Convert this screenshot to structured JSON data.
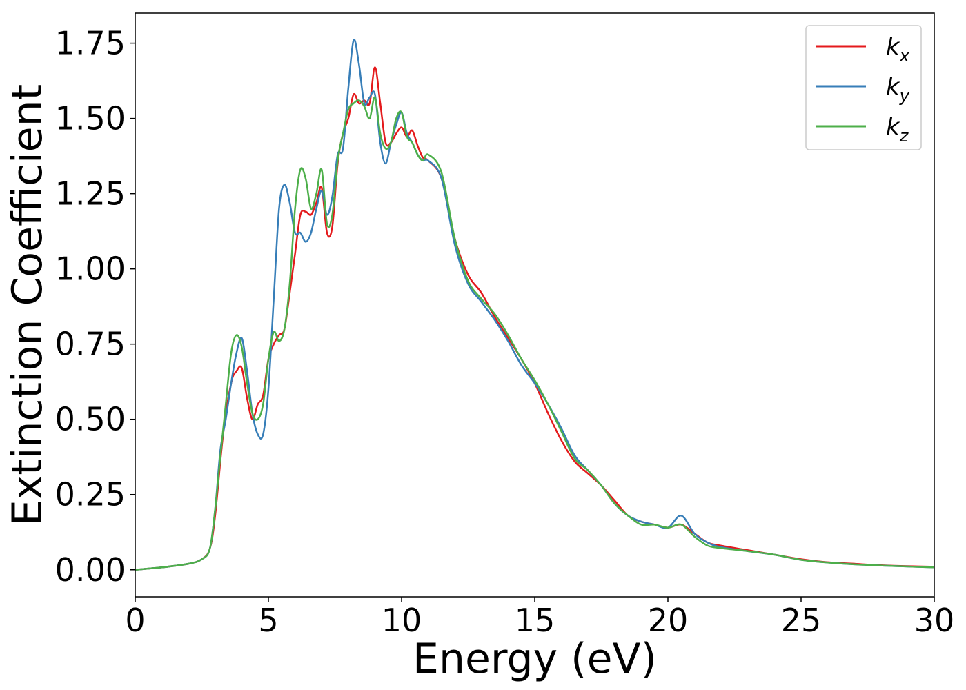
{
  "chart_data": {
    "type": "line",
    "title": "",
    "xlabel": "Energy (eV)",
    "ylabel": "Extinction Coefficient",
    "xlim": [
      0,
      30
    ],
    "ylim": [
      -0.09,
      1.85
    ],
    "xticks": [
      0,
      5,
      10,
      15,
      20,
      25,
      30
    ],
    "xtick_labels": [
      "0",
      "5",
      "10",
      "15",
      "20",
      "25",
      "30"
    ],
    "yticks": [
      0.0,
      0.25,
      0.5,
      0.75,
      1.0,
      1.25,
      1.5,
      1.75
    ],
    "ytick_labels": [
      "0.00",
      "0.25",
      "0.50",
      "0.75",
      "1.00",
      "1.25",
      "1.50",
      "1.75"
    ],
    "grid": false,
    "legend_position": "top-right",
    "series": [
      {
        "name": "k",
        "subscript": "x",
        "color": "#e41a1c",
        "x": [
          0,
          1,
          2,
          2.5,
          2.8,
          3.0,
          3.3,
          3.6,
          3.8,
          4.0,
          4.2,
          4.4,
          4.6,
          4.8,
          5.0,
          5.2,
          5.4,
          5.6,
          5.8,
          6.0,
          6.2,
          6.4,
          6.6,
          6.8,
          7.0,
          7.2,
          7.4,
          7.6,
          7.8,
          8.0,
          8.2,
          8.4,
          8.6,
          8.8,
          9.0,
          9.2,
          9.4,
          9.6,
          9.8,
          10.0,
          10.2,
          10.4,
          10.6,
          10.8,
          11.0,
          11.5,
          12.0,
          12.5,
          13.0,
          13.5,
          14.0,
          14.5,
          15.0,
          15.5,
          16.0,
          16.5,
          17.0,
          17.5,
          18.0,
          18.5,
          19.0,
          19.5,
          20.0,
          20.5,
          21.0,
          21.5,
          22,
          23,
          24,
          25,
          26,
          27,
          28,
          29,
          30
        ],
        "y": [
          0.0,
          0.008,
          0.02,
          0.035,
          0.07,
          0.18,
          0.45,
          0.62,
          0.66,
          0.67,
          0.57,
          0.5,
          0.55,
          0.58,
          0.7,
          0.75,
          0.78,
          0.8,
          0.92,
          1.05,
          1.18,
          1.19,
          1.18,
          1.22,
          1.27,
          1.12,
          1.14,
          1.35,
          1.45,
          1.5,
          1.58,
          1.55,
          1.56,
          1.55,
          1.67,
          1.55,
          1.42,
          1.42,
          1.45,
          1.47,
          1.44,
          1.46,
          1.41,
          1.37,
          1.36,
          1.3,
          1.1,
          0.98,
          0.92,
          0.84,
          0.77,
          0.7,
          0.62,
          0.52,
          0.43,
          0.36,
          0.32,
          0.28,
          0.23,
          0.18,
          0.16,
          0.15,
          0.14,
          0.15,
          0.12,
          0.09,
          0.08,
          0.065,
          0.05,
          0.035,
          0.025,
          0.02,
          0.015,
          0.012,
          0.01
        ]
      },
      {
        "name": "k",
        "subscript": "y",
        "color": "#377eb8",
        "x": [
          0,
          1,
          2,
          2.5,
          2.8,
          3.0,
          3.2,
          3.4,
          3.6,
          3.8,
          4.0,
          4.2,
          4.4,
          4.6,
          4.8,
          5.0,
          5.2,
          5.4,
          5.6,
          5.8,
          6.0,
          6.2,
          6.4,
          6.6,
          6.8,
          7.0,
          7.2,
          7.4,
          7.6,
          7.8,
          8.0,
          8.2,
          8.4,
          8.6,
          8.8,
          9.0,
          9.2,
          9.4,
          9.6,
          9.8,
          10.0,
          10.2,
          10.4,
          10.6,
          10.8,
          11.0,
          11.5,
          12.0,
          12.5,
          13.0,
          13.5,
          14.0,
          14.5,
          15.0,
          15.5,
          16.0,
          16.5,
          17.0,
          17.5,
          18.0,
          18.5,
          19.0,
          19.5,
          20.0,
          20.5,
          21.0,
          21.5,
          22,
          23,
          24,
          25,
          26,
          27,
          28,
          29,
          30
        ],
        "y": [
          0.0,
          0.008,
          0.02,
          0.035,
          0.07,
          0.2,
          0.4,
          0.5,
          0.62,
          0.72,
          0.77,
          0.66,
          0.52,
          0.45,
          0.45,
          0.6,
          0.9,
          1.2,
          1.28,
          1.22,
          1.12,
          1.12,
          1.09,
          1.12,
          1.2,
          1.26,
          1.18,
          1.24,
          1.38,
          1.4,
          1.6,
          1.76,
          1.68,
          1.55,
          1.57,
          1.58,
          1.42,
          1.35,
          1.42,
          1.48,
          1.52,
          1.45,
          1.42,
          1.38,
          1.36,
          1.36,
          1.3,
          1.08,
          0.95,
          0.89,
          0.83,
          0.76,
          0.68,
          0.62,
          0.55,
          0.47,
          0.38,
          0.33,
          0.28,
          0.22,
          0.18,
          0.16,
          0.15,
          0.14,
          0.18,
          0.12,
          0.09,
          0.075,
          0.062,
          0.05,
          0.033,
          0.024,
          0.018,
          0.014,
          0.011,
          0.008
        ]
      },
      {
        "name": "k",
        "subscript": "z",
        "color": "#4daf4a",
        "x": [
          0,
          1,
          2,
          2.5,
          2.8,
          3.0,
          3.2,
          3.4,
          3.6,
          3.8,
          4.0,
          4.2,
          4.4,
          4.6,
          4.8,
          5.0,
          5.2,
          5.4,
          5.6,
          5.8,
          6.0,
          6.2,
          6.4,
          6.6,
          6.8,
          7.0,
          7.2,
          7.4,
          7.6,
          7.8,
          8.0,
          8.2,
          8.4,
          8.6,
          8.8,
          9.0,
          9.2,
          9.4,
          9.6,
          9.8,
          10.0,
          10.2,
          10.4,
          10.6,
          10.8,
          11.0,
          11.5,
          12.0,
          12.5,
          13.0,
          13.5,
          14.0,
          14.5,
          15.0,
          15.5,
          16.0,
          16.5,
          17.0,
          17.5,
          18.0,
          18.5,
          19.0,
          19.5,
          20.0,
          20.5,
          21.0,
          21.5,
          22,
          23,
          24,
          25,
          26,
          27,
          28,
          29,
          30
        ],
        "y": [
          0.0,
          0.008,
          0.02,
          0.035,
          0.07,
          0.2,
          0.38,
          0.55,
          0.72,
          0.78,
          0.74,
          0.62,
          0.52,
          0.5,
          0.55,
          0.7,
          0.79,
          0.76,
          0.8,
          0.95,
          1.2,
          1.33,
          1.3,
          1.2,
          1.25,
          1.33,
          1.15,
          1.18,
          1.36,
          1.45,
          1.53,
          1.55,
          1.56,
          1.54,
          1.5,
          1.57,
          1.45,
          1.4,
          1.42,
          1.5,
          1.52,
          1.44,
          1.42,
          1.38,
          1.36,
          1.38,
          1.32,
          1.1,
          0.96,
          0.9,
          0.85,
          0.78,
          0.7,
          0.63,
          0.55,
          0.46,
          0.37,
          0.33,
          0.28,
          0.22,
          0.18,
          0.15,
          0.15,
          0.14,
          0.15,
          0.11,
          0.08,
          0.072,
          0.062,
          0.05,
          0.033,
          0.024,
          0.018,
          0.014,
          0.011,
          0.008
        ]
      }
    ]
  }
}
